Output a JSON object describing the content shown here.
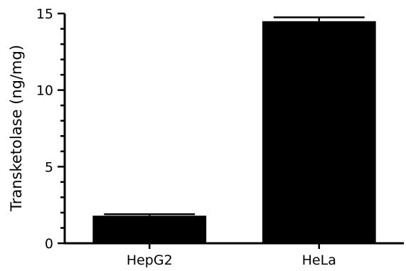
{
  "chart_data": {
    "type": "bar",
    "title": "",
    "xlabel": "",
    "ylabel": "Transketolase (ng/mg)",
    "categories": [
      "HepG2",
      "HeLa"
    ],
    "values": [
      1.8,
      14.5
    ],
    "error_upper": [
      0.1,
      0.25
    ],
    "ylim": [
      0,
      15
    ],
    "yticks_major": [
      0,
      5,
      10,
      15
    ],
    "yticks_minor_step": 1,
    "grid": false,
    "legend": "none",
    "bar_color": "#000000"
  }
}
